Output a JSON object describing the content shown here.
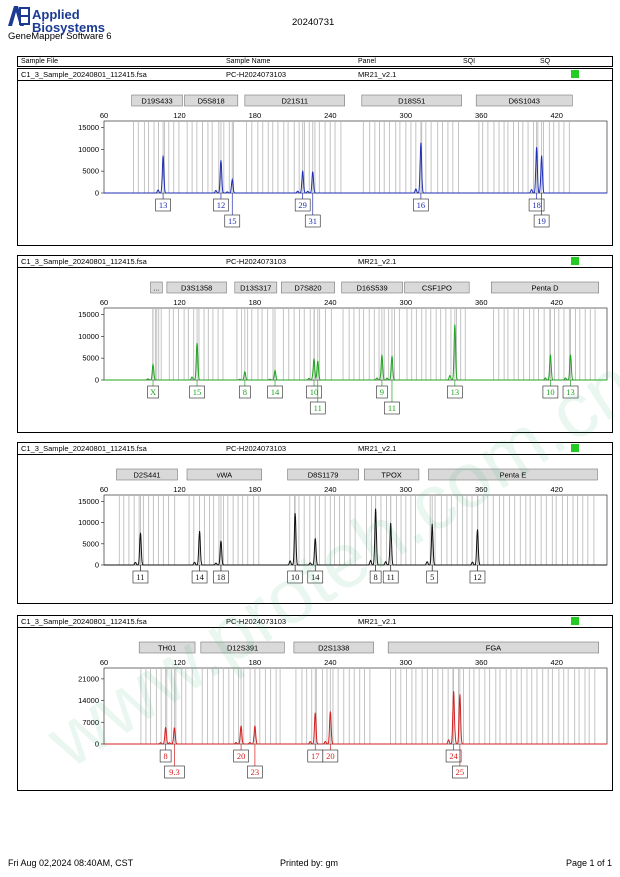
{
  "header": {
    "brand_line1": "Applied",
    "brand_line2": "Biosystems",
    "software": "GeneMapper Software 6",
    "run_date": "20240731"
  },
  "columns": {
    "sample_file": "Sample File",
    "sample_name": "Sample Name",
    "panel": "Panel",
    "sqi": "SQI",
    "sq": "SQ"
  },
  "footer": {
    "left": "Fri Aug 02,2024 08:40AM, CST",
    "center": "Printed by: gm",
    "right": "Page 1 of 1"
  },
  "watermark": "www.proteh.com.cn",
  "colors": {
    "quality_flag": "#22cc22",
    "blue": "#1f2fb5",
    "green": "#1ea51e",
    "black": "#111111",
    "red": "#d42020",
    "bin_gray": "#bdbdbd",
    "marker_fill": "#d9d9d9"
  },
  "chart_data": [
    {
      "type": "line",
      "sample_file": "C1_3_Sample_20240801_112415.fsa",
      "sample_name": "PC-H2024073103",
      "panel": "MR21_v2.1",
      "color": "#1f2fb5",
      "x_range": [
        60,
        460
      ],
      "x_ticks": [
        60,
        120,
        180,
        240,
        300,
        360,
        420
      ],
      "y_range": [
        0,
        16500
      ],
      "y_ticks": [
        5000,
        10000,
        15000
      ],
      "markers": [
        {
          "name": "D19S433",
          "start": 82,
          "end": 124
        },
        {
          "name": "D5S818",
          "start": 124,
          "end": 168
        },
        {
          "name": "D21S11",
          "start": 172,
          "end": 253
        },
        {
          "name": "D18S51",
          "start": 265,
          "end": 346
        },
        {
          "name": "D6S1043",
          "start": 356,
          "end": 434
        }
      ],
      "peaks": [
        {
          "size": 107,
          "height": 8600,
          "allele": "13"
        },
        {
          "size": 153,
          "height": 7500,
          "allele": "12"
        },
        {
          "size": 162,
          "height": 3100,
          "allele": "15"
        },
        {
          "size": 218,
          "height": 5100,
          "allele": "29"
        },
        {
          "size": 226,
          "height": 4900,
          "allele": "31"
        },
        {
          "size": 312,
          "height": 11500,
          "allele": "16"
        },
        {
          "size": 404,
          "height": 9800,
          "allele": "18"
        },
        {
          "size": 408,
          "height": 8600,
          "allele": "19"
        }
      ]
    },
    {
      "type": "line",
      "sample_file": "C1_3_Sample_20240801_112415.fsa",
      "sample_name": "PC-H2024073103",
      "panel": "MR21_v2.1",
      "color": "#1ea51e",
      "x_range": [
        60,
        460
      ],
      "x_ticks": [
        60,
        120,
        180,
        240,
        300,
        360,
        420
      ],
      "y_range": [
        0,
        16500
      ],
      "y_ticks": [
        5000,
        10000,
        15000
      ],
      "markers": [
        {
          "name": "...",
          "start": 97,
          "end": 108
        },
        {
          "name": "D3S1358",
          "start": 110,
          "end": 159
        },
        {
          "name": "D13S317",
          "start": 164,
          "end": 199
        },
        {
          "name": "D7S820",
          "start": 201,
          "end": 245
        },
        {
          "name": "D16S539",
          "start": 249,
          "end": 299
        },
        {
          "name": "CSF1PO",
          "start": 299,
          "end": 352
        },
        {
          "name": "Penta D",
          "start": 368,
          "end": 455
        }
      ],
      "peaks": [
        {
          "size": 99,
          "height": 3500,
          "allele": "X"
        },
        {
          "size": 134,
          "height": 8500,
          "allele": "15"
        },
        {
          "size": 172,
          "height": 1900,
          "allele": "8"
        },
        {
          "size": 196,
          "height": 2200,
          "allele": "14"
        },
        {
          "size": 227,
          "height": 4800,
          "allele": "10"
        },
        {
          "size": 230,
          "height": 4400,
          "allele": "11"
        },
        {
          "size": 281,
          "height": 5800,
          "allele": "9"
        },
        {
          "size": 289,
          "height": 5500,
          "allele": "11"
        },
        {
          "size": 339,
          "height": 12700,
          "allele": "13"
        },
        {
          "size": 415,
          "height": 5800,
          "allele": "10"
        },
        {
          "size": 431,
          "height": 5800,
          "allele": "13"
        }
      ]
    },
    {
      "type": "line",
      "sample_file": "C1_3_Sample_20240801_112415.fsa",
      "sample_name": "PC-H2024073103",
      "panel": "MR21_v2.1",
      "color": "#111111",
      "x_range": [
        60,
        460
      ],
      "x_ticks": [
        60,
        120,
        180,
        240,
        300,
        360,
        420
      ],
      "y_range": [
        0,
        16500
      ],
      "y_ticks": [
        5000,
        10000,
        15000
      ],
      "markers": [
        {
          "name": "D2S441",
          "start": 70,
          "end": 120
        },
        {
          "name": "vWA",
          "start": 126,
          "end": 187
        },
        {
          "name": "D8S1179",
          "start": 206,
          "end": 264
        },
        {
          "name": "TPOX",
          "start": 267,
          "end": 312
        },
        {
          "name": "Penta E",
          "start": 318,
          "end": 454
        }
      ],
      "peaks": [
        {
          "size": 89,
          "height": 7600,
          "allele": "11"
        },
        {
          "size": 136,
          "height": 8000,
          "allele": "14"
        },
        {
          "size": 153,
          "height": 5700,
          "allele": "18"
        },
        {
          "size": 212,
          "height": 12200,
          "allele": "10"
        },
        {
          "size": 228,
          "height": 6300,
          "allele": "14"
        },
        {
          "size": 276,
          "height": 13300,
          "allele": "8"
        },
        {
          "size": 288,
          "height": 9900,
          "allele": "11"
        },
        {
          "size": 321,
          "height": 9700,
          "allele": "5"
        },
        {
          "size": 357,
          "height": 8400,
          "allele": "12"
        }
      ]
    },
    {
      "type": "line",
      "sample_file": "C1_3_Sample_20240801_112415.fsa",
      "sample_name": "PC-H2024073103",
      "panel": "MR21_v2.1",
      "color": "#d42020",
      "x_range": [
        60,
        460
      ],
      "x_ticks": [
        60,
        120,
        180,
        240,
        300,
        360,
        420
      ],
      "y_range": [
        0,
        24500
      ],
      "y_ticks": [
        7000,
        14000,
        21000
      ],
      "markers": [
        {
          "name": "TH01",
          "start": 88,
          "end": 134
        },
        {
          "name": "D12S391",
          "start": 137,
          "end": 205
        },
        {
          "name": "D2S1338",
          "start": 211,
          "end": 276
        },
        {
          "name": "FGA",
          "start": 286,
          "end": 455
        }
      ],
      "peaks": [
        {
          "size": 109,
          "height": 5400,
          "allele": "8"
        },
        {
          "size": 116,
          "height": 5300,
          "allele": "9.3"
        },
        {
          "size": 169,
          "height": 5900,
          "allele": "20"
        },
        {
          "size": 180,
          "height": 5900,
          "allele": "23"
        },
        {
          "size": 228,
          "height": 10100,
          "allele": "17"
        },
        {
          "size": 240,
          "height": 10500,
          "allele": "20"
        },
        {
          "size": 338,
          "height": 16700,
          "allele": "24"
        },
        {
          "size": 343,
          "height": 16100,
          "allele": "25"
        }
      ]
    }
  ]
}
